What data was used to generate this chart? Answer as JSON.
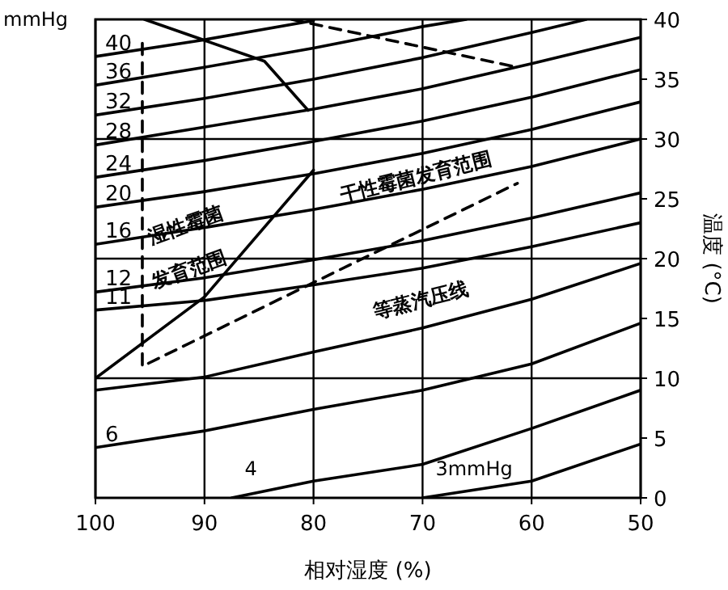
{
  "chart_data": {
    "type": "line",
    "xlabel": "相对湿度 (%)",
    "y2label": "温度 (°C)",
    "xlim": [
      100,
      50
    ],
    "xticks": [
      100,
      90,
      80,
      70,
      60,
      50
    ],
    "y2lim": [
      0,
      40
    ],
    "y2ticks": [
      0,
      5,
      10,
      15,
      20,
      25,
      30,
      35,
      40
    ],
    "grid": "x",
    "legend": false,
    "line_style": "solid",
    "marker": "none",
    "ref_lines": [
      {
        "axis": "y2",
        "value": 10,
        "color": "#000000"
      },
      {
        "axis": "y2",
        "value": 20,
        "color": "#000000"
      },
      {
        "axis": "y2",
        "value": 30,
        "color": "#000000"
      }
    ],
    "series": [
      {
        "name": "40",
        "color": "#000000",
        "axis": "y2",
        "x": [
          100,
          90,
          80
        ],
        "values": [
          36.9,
          38.3,
          39.9
        ]
      },
      {
        "name": "36",
        "color": "#000000",
        "axis": "y2",
        "x": [
          100,
          90,
          80,
          70,
          66
        ],
        "values": [
          34.5,
          36.0,
          37.6,
          39.4,
          40
        ]
      },
      {
        "name": "32",
        "color": "#000000",
        "axis": "y2",
        "x": [
          100,
          90,
          80,
          70,
          60,
          55
        ],
        "values": [
          32.0,
          33.4,
          35.0,
          36.8,
          38.9,
          40
        ]
      },
      {
        "name": "28",
        "color": "#000000",
        "axis": "y2",
        "x": [
          100,
          90,
          80,
          70,
          60,
          50
        ],
        "values": [
          29.5,
          31.0,
          32.5,
          34.2,
          36.3,
          38.5
        ]
      },
      {
        "name": "24",
        "color": "#000000",
        "axis": "y2",
        "x": [
          100,
          90,
          80,
          70,
          60,
          50
        ],
        "values": [
          26.8,
          28.2,
          29.8,
          31.5,
          33.5,
          35.8
        ]
      },
      {
        "name": "20",
        "color": "#000000",
        "axis": "y2",
        "x": [
          100,
          90,
          80,
          70,
          60,
          50
        ],
        "values": [
          24.3,
          25.6,
          27.1,
          28.8,
          30.8,
          33.1
        ]
      },
      {
        "name": "16",
        "color": "#000000",
        "axis": "y2",
        "x": [
          100,
          90,
          80,
          70,
          60,
          50
        ],
        "values": [
          21.2,
          22.6,
          24.1,
          25.8,
          27.7,
          30.0
        ]
      },
      {
        "name": "12",
        "color": "#000000",
        "axis": "y2",
        "x": [
          100,
          90,
          80,
          70,
          60,
          50
        ],
        "values": [
          17.2,
          18.4,
          19.9,
          21.5,
          23.4,
          25.5
        ]
      },
      {
        "name": "11",
        "color": "#000000",
        "axis": "y2",
        "x": [
          100,
          90,
          80,
          70,
          60,
          50
        ],
        "values": [
          15.7,
          16.5,
          17.8,
          19.2,
          21.0,
          23.0
        ]
      },
      {
        "color": "#000000",
        "axis": "y2",
        "x": [
          100,
          90,
          80,
          70,
          60,
          50
        ],
        "values": [
          9.0,
          10.1,
          12.2,
          14.2,
          16.6,
          19.6
        ]
      },
      {
        "name": "6",
        "color": "#000000",
        "axis": "y2",
        "x": [
          100,
          90,
          80,
          70,
          60,
          50
        ],
        "values": [
          4.2,
          5.6,
          7.4,
          9.0,
          11.2,
          14.6
        ]
      },
      {
        "name": "4",
        "color": "#000000",
        "axis": "y2",
        "x": [
          87.5,
          80,
          70,
          60,
          50
        ],
        "values": [
          0,
          1.4,
          2.8,
          5.8,
          9.0
        ]
      },
      {
        "name": "3mmHg",
        "color": "#000000",
        "axis": "y2",
        "x": [
          70,
          60,
          50
        ],
        "values": [
          0,
          1.4,
          4.5
        ]
      },
      {
        "color": "#000000",
        "axis": "y2",
        "x": [
          100,
          90,
          80
        ],
        "values": [
          10,
          16.8,
          27.4
        ]
      },
      {
        "color": "#000000",
        "axis": "y2",
        "x": [
          95.5,
          84.5,
          80.5
        ],
        "values": [
          40,
          36.5,
          32.4
        ]
      },
      {
        "color": "#000000",
        "axis": "y2",
        "line_style": "dashed",
        "x": [
          95.7,
          95.7,
          80,
          61.3
        ],
        "values": [
          38,
          11,
          18,
          26.3
        ]
      },
      {
        "color": "#000000",
        "axis": "y2",
        "line_style": "dashed",
        "x": [
          82,
          61.3
        ],
        "values": [
          40,
          36
        ]
      }
    ],
    "annotations": [
      "mmHg",
      "湿性霉菌",
      "发育范围",
      "干性霉菌发育范围",
      "等蒸汽压线"
    ]
  }
}
